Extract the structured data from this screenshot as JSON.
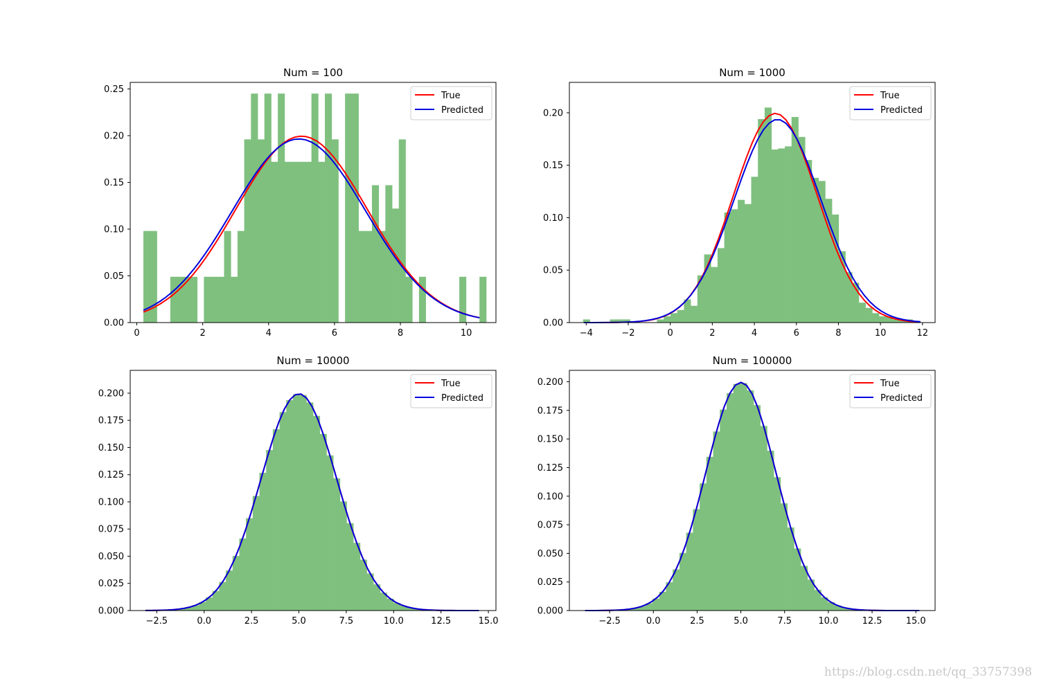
{
  "watermark": "https://blog.csdn.net/qq_33757398",
  "colors": {
    "hist": "#7fc07f",
    "true": "#ff0000",
    "predicted": "#0000dd"
  },
  "chart_data": [
    {
      "type": "bar",
      "title": "Num = 100",
      "legend": {
        "placement": "top-right",
        "entries": [
          "True",
          "Predicted"
        ]
      },
      "xlim": [
        -0.2,
        10.9
      ],
      "ylim": [
        0,
        0.257
      ],
      "xticks": [
        0,
        2,
        4,
        6,
        8,
        10
      ],
      "xtick_labels": [
        "0",
        "2",
        "4",
        "6",
        "8",
        "10"
      ],
      "yticks": [
        0,
        0.05,
        0.1,
        0.15,
        0.2,
        0.25
      ],
      "ytick_labels": [
        "0.00",
        "0.05",
        "0.10",
        "0.15",
        "0.20",
        "0.25"
      ],
      "hist": {
        "start": 0.2,
        "width": 0.204,
        "heights": [
          0.098,
          0.098,
          0,
          0,
          0.049,
          0.049,
          0.049,
          0.049,
          0,
          0.049,
          0.049,
          0.049,
          0.098,
          0.049,
          0.098,
          0.196,
          0.245,
          0.196,
          0.245,
          0.172,
          0.245,
          0.172,
          0.172,
          0.172,
          0.172,
          0.245,
          0.172,
          0.245,
          0.196,
          0,
          0.245,
          0.245,
          0.098,
          0.098,
          0.147,
          0.098,
          0.147,
          0.122,
          0.196,
          0.049,
          0,
          0.049,
          0,
          0,
          0,
          0,
          0,
          0.049,
          0,
          0,
          0.049
        ]
      },
      "curves": [
        {
          "name": "True",
          "mu": 5.0,
          "sigma": 2.0,
          "x_range": [
            0.2,
            10.4
          ]
        },
        {
          "name": "Predicted",
          "mu": 4.92,
          "sigma": 2.03,
          "x_range": [
            0.2,
            10.4
          ]
        }
      ]
    },
    {
      "type": "bar",
      "title": "Num = 1000",
      "legend": {
        "placement": "top-right",
        "entries": [
          "True",
          "Predicted"
        ]
      },
      "xlim": [
        -4.8,
        12.6
      ],
      "ylim": [
        0,
        0.229
      ],
      "xticks": [
        -4,
        -2,
        0,
        2,
        4,
        6,
        8,
        10,
        12
      ],
      "xtick_labels": [
        "−4",
        "−2",
        "0",
        "2",
        "4",
        "6",
        "8",
        "10",
        "12"
      ],
      "yticks": [
        0,
        0.05,
        0.1,
        0.15,
        0.2
      ],
      "ytick_labels": [
        "0.00",
        "0.05",
        "0.10",
        "0.15",
        "0.20"
      ],
      "hist": {
        "start": -4.15,
        "width": 0.32,
        "heights": [
          0.003,
          0,
          0,
          0,
          0.003,
          0.003,
          0.003,
          0,
          0,
          0,
          0,
          0.003,
          0.006,
          0.009,
          0.012,
          0.022,
          0.016,
          0.045,
          0.065,
          0.053,
          0.071,
          0.105,
          0.108,
          0.117,
          0.113,
          0.139,
          0.194,
          0.205,
          0.165,
          0.166,
          0.168,
          0.196,
          0.177,
          0.155,
          0.138,
          0.135,
          0.118,
          0.103,
          0.068,
          0.048,
          0.038,
          0.019,
          0.014,
          0.009,
          0.006,
          0.006,
          0.003,
          0.003,
          0.003
        ]
      },
      "curves": [
        {
          "name": "True",
          "mu": 5.0,
          "sigma": 2.0,
          "x_range": [
            -4.1,
            11.9
          ]
        },
        {
          "name": "Predicted",
          "mu": 5.1,
          "sigma": 2.06,
          "x_range": [
            -4.1,
            11.9
          ]
        }
      ]
    },
    {
      "type": "bar",
      "title": "Num = 10000",
      "legend": {
        "placement": "top-right",
        "entries": [
          "True",
          "Predicted"
        ]
      },
      "xlim": [
        -3.9,
        15.4
      ],
      "ylim": [
        0,
        0.221
      ],
      "xticks": [
        -2.5,
        0,
        2.5,
        5,
        7.5,
        10,
        12.5,
        15
      ],
      "xtick_labels": [
        "−2.5",
        "0.0",
        "2.5",
        "5.0",
        "7.5",
        "10.0",
        "12.5",
        "15.0"
      ],
      "yticks": [
        0,
        0.025,
        0.05,
        0.075,
        0.1,
        0.125,
        0.15,
        0.175,
        0.2
      ],
      "ytick_labels": [
        "0.000",
        "0.025",
        "0.050",
        "0.075",
        "0.100",
        "0.125",
        "0.150",
        "0.175",
        "0.200"
      ],
      "hist": {
        "start": -3.1,
        "width": 0.354,
        "heights": null
      },
      "curves": [
        {
          "name": "True",
          "mu": 5.0,
          "sigma": 2.0,
          "x_range": [
            -3.1,
            14.5
          ]
        },
        {
          "name": "Predicted",
          "mu": 5.0,
          "sigma": 2.0,
          "x_range": [
            -3.1,
            14.5
          ]
        }
      ]
    },
    {
      "type": "bar",
      "title": "Num = 100000",
      "legend": {
        "placement": "top-right",
        "entries": [
          "True",
          "Predicted"
        ]
      },
      "xlim": [
        -4.8,
        16.1
      ],
      "ylim": [
        0,
        0.21
      ],
      "xticks": [
        -2.5,
        0,
        2.5,
        5,
        7.5,
        10,
        12.5,
        15
      ],
      "xtick_labels": [
        "−2.5",
        "0.0",
        "2.5",
        "5.0",
        "7.5",
        "10.0",
        "12.5",
        "15.0"
      ],
      "yticks": [
        0,
        0.025,
        0.05,
        0.075,
        0.1,
        0.125,
        0.15,
        0.175,
        0.2
      ],
      "ytick_labels": [
        "0.000",
        "0.025",
        "0.050",
        "0.075",
        "0.100",
        "0.125",
        "0.150",
        "0.175",
        "0.200"
      ],
      "hist": {
        "start": -3.9,
        "width": 0.385,
        "heights": null
      },
      "curves": [
        {
          "name": "True",
          "mu": 5.0,
          "sigma": 2.0,
          "x_range": [
            -3.9,
            15.2
          ]
        },
        {
          "name": "Predicted",
          "mu": 5.0,
          "sigma": 2.0,
          "x_range": [
            -3.9,
            15.2
          ]
        }
      ]
    }
  ]
}
